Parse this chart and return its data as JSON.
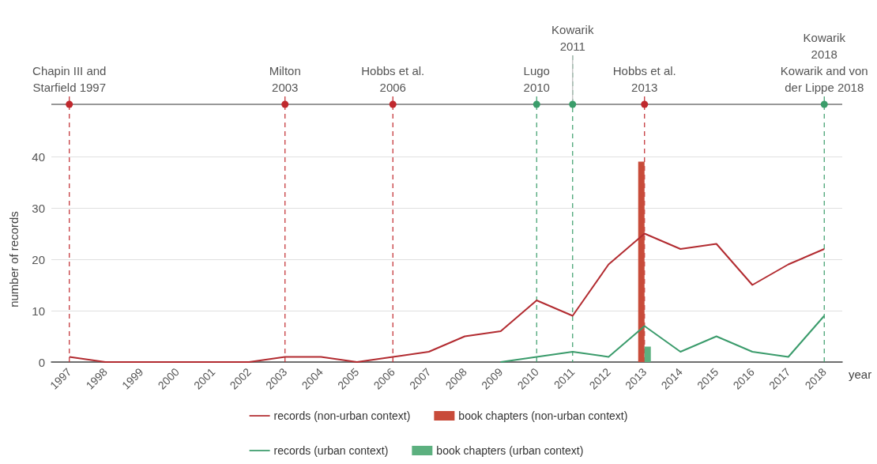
{
  "chart_data": {
    "type": "line",
    "xlabel": "year",
    "ylabel": "number of records",
    "categories": [
      "1997",
      "1998",
      "1999",
      "2000",
      "2001",
      "2002",
      "2003",
      "2004",
      "2005",
      "2006",
      "2007",
      "2008",
      "2009",
      "2010",
      "2011",
      "2012",
      "2013",
      "2014",
      "2015",
      "2016",
      "2017",
      "2018"
    ],
    "series": [
      {
        "name": "records (non-urban context)",
        "color": "#b22b30",
        "values": [
          1,
          0,
          0,
          0,
          0,
          0,
          1,
          1,
          0,
          1,
          2,
          5,
          6,
          12,
          9,
          19,
          25,
          22,
          23,
          15,
          19,
          22
        ]
      },
      {
        "name": "book chapters (non-urban context)",
        "type": "bar",
        "color": "#c84b3a",
        "values": [
          null,
          null,
          null,
          null,
          null,
          null,
          null,
          null,
          null,
          null,
          null,
          null,
          null,
          null,
          null,
          null,
          39,
          null,
          null,
          null,
          null,
          null
        ]
      },
      {
        "name": "records (urban context)",
        "color": "#3a9b6b",
        "values": [
          null,
          null,
          null,
          null,
          null,
          null,
          null,
          null,
          null,
          null,
          null,
          null,
          0,
          1,
          2,
          1,
          7,
          2,
          5,
          2,
          1,
          9
        ]
      },
      {
        "name": "book chapters (urban context)",
        "type": "bar",
        "color": "#5cb07f",
        "values": [
          null,
          null,
          null,
          null,
          null,
          null,
          null,
          null,
          null,
          null,
          null,
          null,
          null,
          null,
          null,
          null,
          3,
          null,
          null,
          null,
          null,
          null
        ]
      }
    ],
    "ylim": [
      0,
      40
    ],
    "yticks": [
      0,
      10,
      20,
      30,
      40
    ],
    "grid": "y",
    "legend": "bottom",
    "marker": "none",
    "line_style": "solid",
    "ref_lines": [
      {
        "axis": "x",
        "value": "1997",
        "label": "Chapin III and Starfield 1997",
        "color": "#c0282d",
        "line_style": "dashed"
      },
      {
        "axis": "x",
        "value": "2003",
        "label": "Milton 2003",
        "color": "#c0282d",
        "line_style": "dashed"
      },
      {
        "axis": "x",
        "value": "2006",
        "label": "Hobbs et al. 2006",
        "color": "#c0282d",
        "line_style": "dashed"
      },
      {
        "axis": "x",
        "value": "2010",
        "label": "Lugo 2010",
        "color": "#3a9d6a",
        "line_style": "dashed"
      },
      {
        "axis": "x",
        "value": "2011",
        "label": "Kowarik 2011",
        "color": "#3a9d6a",
        "line_style": "dashed"
      },
      {
        "axis": "x",
        "value": "2013",
        "label": "Hobbs et al. 2013",
        "color": "#c0282d",
        "line_style": "dashed"
      },
      {
        "axis": "x",
        "value": "2018",
        "label": "Kowarik 2018 Kowarik and von der Lippe 2018",
        "color": "#3a9d6a",
        "line_style": "dashed"
      }
    ]
  }
}
